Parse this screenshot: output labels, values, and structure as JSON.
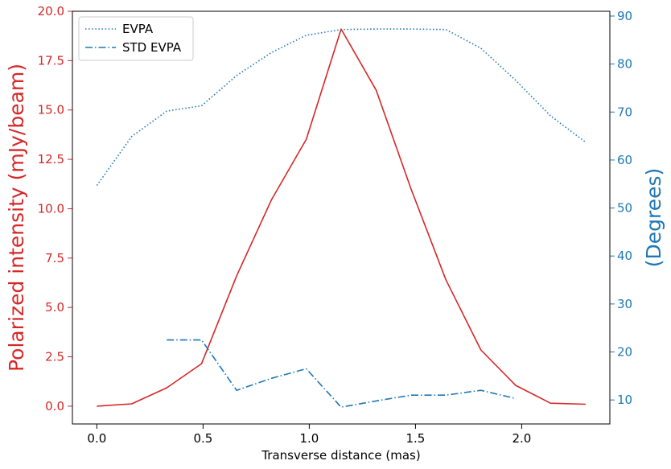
{
  "chart_data": {
    "type": "line",
    "xlabel": "Transverse distance (mas)",
    "ylabel_left": "Polarized intensity (mJy/beam)",
    "ylabel_right": "(Degrees)",
    "xlim": [
      -0.115,
      2.415
    ],
    "ylim_left": [
      -0.9,
      20.0
    ],
    "ylim_right": [
      5.0,
      91.0
    ],
    "x_ticks": [
      0.0,
      0.5,
      1.0,
      1.5,
      2.0
    ],
    "x_tick_labels": [
      "0.0",
      "0.5",
      "1.0",
      "1.5",
      "2.0"
    ],
    "y_left_ticks": [
      0.0,
      2.5,
      5.0,
      7.5,
      10.0,
      12.5,
      15.0,
      17.5,
      20.0
    ],
    "y_left_tick_labels": [
      "0.0",
      "2.5",
      "5.0",
      "7.5",
      "10.0",
      "12.5",
      "15.0",
      "17.5",
      "20.0"
    ],
    "y_right_ticks": [
      10,
      20,
      30,
      40,
      50,
      60,
      70,
      80,
      90
    ],
    "y_right_tick_labels": [
      "10",
      "20",
      "30",
      "40",
      "50",
      "60",
      "70",
      "80",
      "90"
    ],
    "grid": false,
    "legend": "top-left",
    "colors": {
      "left_axis": "#d62728",
      "right_axis": "#1f77b4",
      "pi": "#d62728",
      "evpa": "#1f77b4"
    },
    "series": [
      {
        "name": "",
        "axis": "left",
        "style": "solid",
        "x": [
          0.0,
          0.164,
          0.329,
          0.493,
          0.658,
          0.822,
          0.986,
          1.15,
          1.315,
          1.479,
          1.643,
          1.808,
          1.972,
          2.136,
          2.301
        ],
        "values": [
          0.0,
          0.12,
          0.93,
          2.15,
          6.6,
          10.45,
          13.52,
          19.1,
          16.0,
          11.0,
          6.4,
          2.85,
          1.05,
          0.15,
          0.1
        ]
      },
      {
        "name": "EVPA",
        "axis": "right",
        "style": "dotted",
        "x": [
          0.0,
          0.164,
          0.329,
          0.493,
          0.658,
          0.822,
          0.986,
          1.15,
          1.315,
          1.479,
          1.643,
          1.808,
          1.972,
          2.136,
          2.301
        ],
        "values": [
          54.7,
          64.9,
          70.2,
          71.3,
          77.6,
          82.4,
          86.0,
          87.2,
          87.3,
          87.3,
          87.2,
          83.3,
          76.6,
          69.2,
          63.7
        ]
      },
      {
        "name": "STD EVPA",
        "axis": "right",
        "style": "dashdot",
        "x": [
          0.329,
          0.493,
          0.658,
          0.822,
          0.986,
          1.15,
          1.315,
          1.479,
          1.643,
          1.808,
          1.972
        ],
        "values": [
          22.5,
          22.5,
          12.0,
          14.5,
          16.5,
          8.5,
          9.8,
          11.0,
          11.0,
          12.0,
          10.3
        ]
      }
    ]
  }
}
